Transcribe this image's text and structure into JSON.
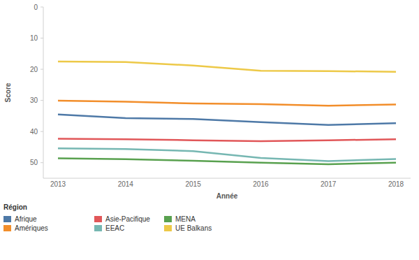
{
  "chart_data": {
    "type": "line",
    "x_label": "Année",
    "y_label": "Score",
    "legend_title": "Région",
    "legend": "bottom-left",
    "grid": false,
    "categories": [
      "2013",
      "2014",
      "2015",
      "2016",
      "2017",
      "2018"
    ],
    "ylim": [
      55,
      0
    ],
    "yticks": [
      0,
      10,
      20,
      30,
      40,
      50
    ],
    "series": [
      {
        "name": "Afrique",
        "color": "#4e79a7",
        "values": [
          34.5,
          35.7,
          36.0,
          37.0,
          37.9,
          37.3
        ]
      },
      {
        "name": "Asie-Pacifique",
        "color": "#e15759",
        "values": [
          42.3,
          42.5,
          42.8,
          43.1,
          42.8,
          42.5
        ]
      },
      {
        "name": "MENA",
        "color": "#59a14f",
        "values": [
          48.6,
          48.9,
          49.4,
          50.0,
          50.5,
          50.0
        ]
      },
      {
        "name": "Amériques",
        "color": "#f28e2b",
        "values": [
          30.1,
          30.4,
          31.0,
          31.2,
          31.7,
          31.3
        ]
      },
      {
        "name": "EEAC",
        "color": "#76b7b2",
        "values": [
          45.4,
          45.6,
          46.3,
          48.5,
          49.5,
          48.8
        ]
      },
      {
        "name": "UE Balkans",
        "color": "#edc948",
        "values": [
          17.5,
          17.7,
          18.8,
          20.5,
          20.6,
          20.8
        ]
      }
    ]
  }
}
